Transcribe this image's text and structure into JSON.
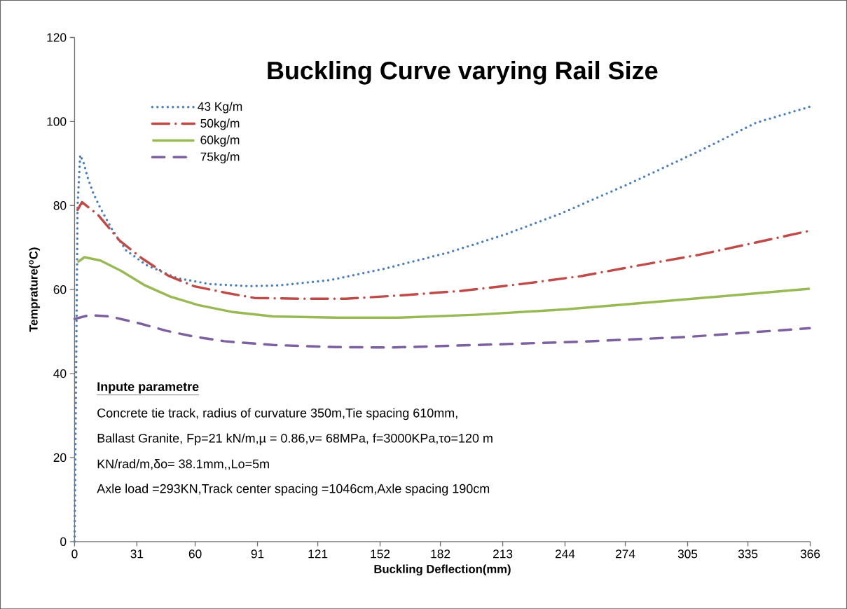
{
  "chart_data": {
    "type": "line",
    "title": "Buckling Curve varying Rail Size",
    "xlabel": "Buckling Deflection(mm)",
    "ylabel": "Temprature($^{o}$C)",
    "xlim": [
      0,
      366
    ],
    "ylim": [
      0,
      120
    ],
    "xticks": [
      0,
      31,
      60,
      91,
      121,
      152,
      182,
      213,
      244,
      274,
      305,
      335,
      366
    ],
    "yticks": [
      0,
      20,
      40,
      60,
      80,
      100,
      120
    ],
    "grid": false,
    "legend": "top left",
    "series": [
      {
        "name": "43 Kg/m",
        "color": "#4a7ebb",
        "line_style": "dotted",
        "x": [
          0,
          1.5,
          2.8,
          4.5,
          6.6,
          9.4,
          12.9,
          18.8,
          25.7,
          35.8,
          51,
          67.5,
          87,
          102,
          126.6,
          154.5,
          186,
          213.6,
          241.5,
          276,
          311,
          339,
          365.76
        ],
        "values": [
          0,
          80,
          92,
          90.2,
          86.5,
          82.8,
          79.3,
          74.2,
          69.3,
          65.8,
          62.7,
          61.3,
          60.8,
          61,
          62.2,
          65,
          68.8,
          73,
          78,
          85.2,
          93,
          99.7,
          103.5
        ]
      },
      {
        "name": "50kg/m",
        "color": "#be4b48",
        "line_style": "dashdot",
        "x": [
          1.5,
          3.7,
          11.8,
          22.3,
          33.3,
          46.6,
          59.4,
          75.5,
          89.4,
          112.7,
          135,
          165,
          192.8,
          222,
          252,
          281.5,
          311,
          339,
          365.76
        ],
        "values": [
          79,
          80.8,
          77.7,
          71.7,
          67.5,
          63.3,
          60.8,
          59.2,
          58,
          57.8,
          57.8,
          58.7,
          59.7,
          61.3,
          63.2,
          65.8,
          68.3,
          71.2,
          74
        ]
      },
      {
        "name": "60kg/m",
        "color": "#98b954",
        "line_style": "solid",
        "x": [
          1.5,
          4.9,
          12.9,
          23.3,
          35,
          47.7,
          61.6,
          78,
          98.8,
          130,
          161.5,
          199.7,
          245,
          295.4,
          365.76
        ],
        "values": [
          66.5,
          67.7,
          66.9,
          64.4,
          61,
          58.3,
          56.3,
          54.7,
          53.6,
          53.3,
          53.3,
          54,
          55.3,
          57.3,
          60.2
        ]
      },
      {
        "name": "75kg/m",
        "color": "#7d60a0",
        "line_style": "dashed",
        "x": [
          0,
          7.2,
          17.6,
          32.7,
          45.5,
          59.4,
          74.5,
          98.8,
          130,
          158,
          199.7,
          252,
          304,
          365.76
        ],
        "values": [
          53,
          53.9,
          53.6,
          51.9,
          50.2,
          48.8,
          47.7,
          46.8,
          46.3,
          46.2,
          46.8,
          47.6,
          48.7,
          50.8
        ]
      }
    ],
    "annotations": [
      "**Inpute parametre**",
      "Concrete  tie track, radius of curvature 350m,Tie spacing 610mm,",
      "Ballast Granite, Fp=21 kN/m,µ = 0.86,ν= 68MPa, f=3000KPa,τo=120 m",
      "KN/rad/m,δo= 38.1mm,,Lo=5m",
      "Axle load =293KN,Track center spacing =1046cm,Axle spacing 190cm"
    ]
  }
}
